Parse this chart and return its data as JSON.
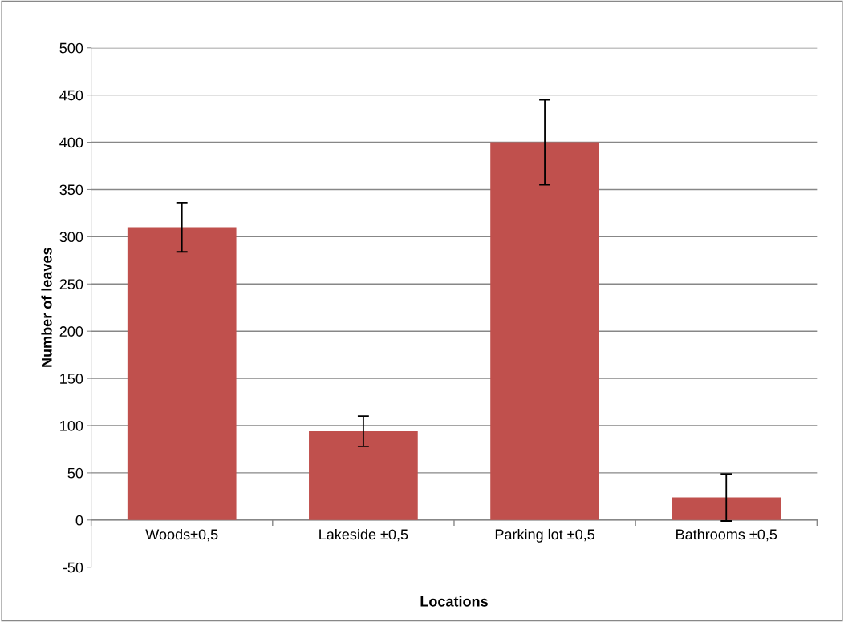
{
  "chart_data": {
    "type": "bar",
    "xlabel": "Locations",
    "ylabel": "Number of leaves",
    "categories": [
      "Woods±0,5",
      "Lakeside ±0,5",
      "Parking lot ±0,5",
      "Bathrooms ±0,5"
    ],
    "values": [
      310,
      94,
      400,
      24
    ],
    "errors": [
      26,
      16,
      45,
      25
    ],
    "color": "#c0504d",
    "ylim": [
      -50,
      500
    ],
    "yticks": [
      -50,
      0,
      50,
      100,
      150,
      200,
      250,
      300,
      350,
      400,
      450,
      500
    ],
    "grid": "y",
    "legend": false
  }
}
